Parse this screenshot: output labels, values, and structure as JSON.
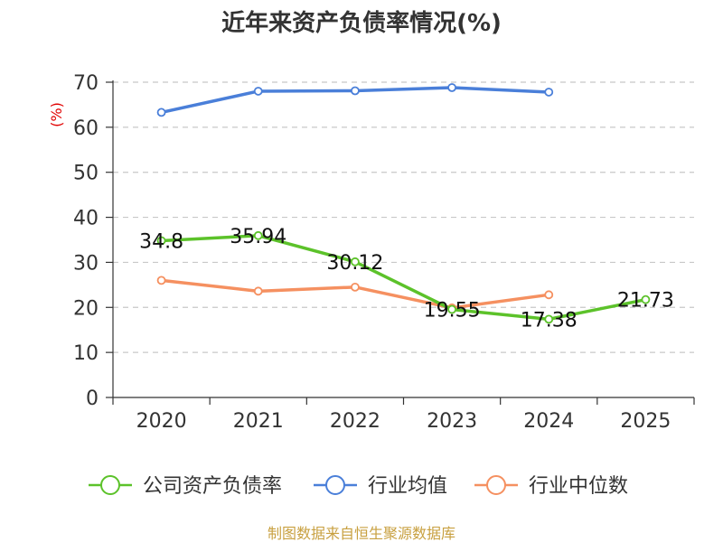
{
  "chart_data": {
    "type": "line",
    "title": "近年来资产负债率情况(%)",
    "ylabel": "(%)",
    "xlabel": "",
    "ylim": [
      0,
      70
    ],
    "yticks": [
      0,
      10,
      20,
      30,
      40,
      50,
      60,
      70
    ],
    "categories": [
      "2020",
      "2021",
      "2022",
      "2023",
      "2024",
      "2025"
    ],
    "grid": "horizontal dashed",
    "legend_position": "bottom",
    "series": [
      {
        "name": "公司资产负债率",
        "color": "#5cc22a",
        "values": [
          34.8,
          35.94,
          30.12,
          19.55,
          17.38,
          21.73
        ],
        "labels": [
          "34.8",
          "35.94",
          "30.12",
          "19.55",
          "17.38",
          "21.73"
        ]
      },
      {
        "name": "行业均值",
        "color": "#4a7fd9",
        "values": [
          63.3,
          68.0,
          68.1,
          68.8,
          67.8,
          null
        ]
      },
      {
        "name": "行业中位数",
        "color": "#f59060",
        "values": [
          26.0,
          23.6,
          24.5,
          19.9,
          22.8,
          null
        ]
      }
    ],
    "source": "制图数据来自恒生聚源数据库"
  }
}
